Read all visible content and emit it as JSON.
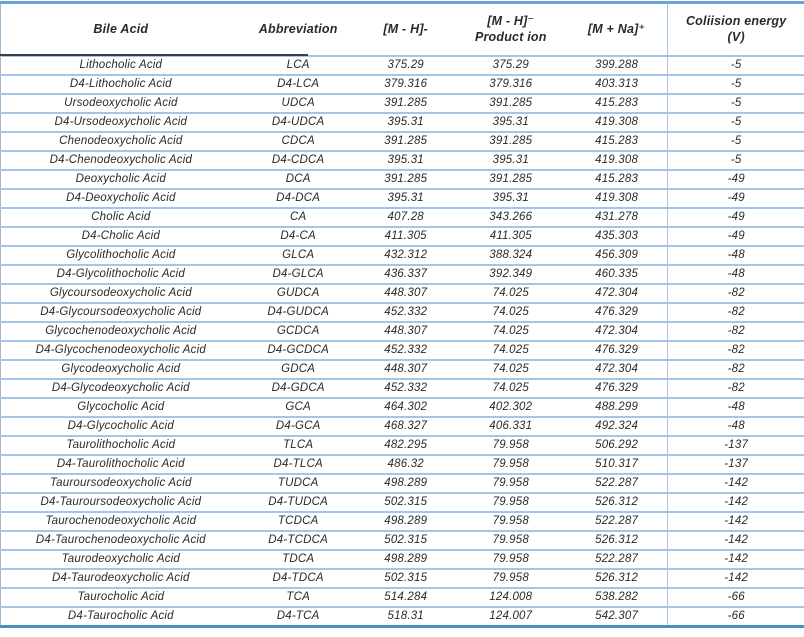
{
  "table": {
    "title": "Bile acid MS parameters table",
    "keys": [
      "bile_acid",
      "abbreviation",
      "m_minus_h",
      "product_ion",
      "m_plus_na",
      "collision_energy"
    ],
    "columns": [
      {
        "label": "Bile Acid",
        "sub": ""
      },
      {
        "label": "Abbreviation",
        "sub": ""
      },
      {
        "label": "[M - H]-",
        "sub": ""
      },
      {
        "label": "[M - H]⁻",
        "sub": "Product ion"
      },
      {
        "label": "[M + Na]⁺",
        "sub": ""
      },
      {
        "label": "Coliision energy",
        "sub": "(V)"
      }
    ],
    "rows": [
      [
        "Lithocholic Acid",
        "LCA",
        "375.29",
        "375.29",
        "399.288",
        "-5"
      ],
      [
        "D4-Lithocholic Acid",
        "D4-LCA",
        "379.316",
        "379.316",
        "403.313",
        "-5"
      ],
      [
        "Ursodeoxycholic Acid",
        "UDCA",
        "391.285",
        "391.285",
        "415.283",
        "-5"
      ],
      [
        "D4-Ursodeoxycholic Acid",
        "D4-UDCA",
        "395.31",
        "395.31",
        "419.308",
        "-5"
      ],
      [
        "Chenodeoxycholic Acid",
        "CDCA",
        "391.285",
        "391.285",
        "415.283",
        "-5"
      ],
      [
        "D4-Chenodeoxycholic Acid",
        "D4-CDCA",
        "395.31",
        "395.31",
        "419.308",
        "-5"
      ],
      [
        "Deoxycholic Acid",
        "DCA",
        "391.285",
        "391.285",
        "415.283",
        "-49"
      ],
      [
        "D4-Deoxycholic Acid",
        "D4-DCA",
        "395.31",
        "395.31",
        "419.308",
        "-49"
      ],
      [
        "Cholic Acid",
        "CA",
        "407.28",
        "343.266",
        "431.278",
        "-49"
      ],
      [
        "D4-Cholic Acid",
        "D4-CA",
        "411.305",
        "411.305",
        "435.303",
        "-49"
      ],
      [
        "Glycolithocholic Acid",
        "GLCA",
        "432.312",
        "388.324",
        "456.309",
        "-48"
      ],
      [
        "D4-Glycolithocholic Acid",
        "D4-GLCA",
        "436.337",
        "392.349",
        "460.335",
        "-48"
      ],
      [
        "Glycoursodeoxycholic Acid",
        "GUDCA",
        "448.307",
        "74.025",
        "472.304",
        "-82"
      ],
      [
        "D4-Glycoursodeoxycholic Acid",
        "D4-GUDCA",
        "452.332",
        "74.025",
        "476.329",
        "-82"
      ],
      [
        "Glycochenodeoxycholic Acid",
        "GCDCA",
        "448.307",
        "74.025",
        "472.304",
        "-82"
      ],
      [
        "D4-Glycochenodeoxycholic Acid",
        "D4-GCDCA",
        "452.332",
        "74.025",
        "476.329",
        "-82"
      ],
      [
        "Glycodeoxycholic Acid",
        "GDCA",
        "448.307",
        "74.025",
        "472.304",
        "-82"
      ],
      [
        "D4-Glycodeoxycholic Acid",
        "D4-GDCA",
        "452.332",
        "74.025",
        "476.329",
        "-82"
      ],
      [
        "Glycocholic Acid",
        "GCA",
        "464.302",
        "402.302",
        "488.299",
        "-48"
      ],
      [
        "D4-Glycocholic Acid",
        "D4-GCA",
        "468.327",
        "406.331",
        "492.324",
        "-48"
      ],
      [
        "Taurolithocholic Acid",
        "TLCA",
        "482.295",
        "79.958",
        "506.292",
        "-137"
      ],
      [
        "D4-Taurolithocholic Acid",
        "D4-TLCA",
        "486.32",
        "79.958",
        "510.317",
        "-137"
      ],
      [
        "Tauroursodeoxycholic Acid",
        "TUDCA",
        "498.289",
        "79.958",
        "522.287",
        "-142"
      ],
      [
        "D4-Tauroursodeoxycholic Acid",
        "D4-TUDCA",
        "502.315",
        "79.958",
        "526.312",
        "-142"
      ],
      [
        "Taurochenodeoxycholic Acid",
        "TCDCA",
        "498.289",
        "79.958",
        "522.287",
        "-142"
      ],
      [
        "D4-Taurochenodeoxycholic Acid",
        "D4-TCDCA",
        "502.315",
        "79.958",
        "526.312",
        "-142"
      ],
      [
        "Taurodeoxycholic Acid",
        "TDCA",
        "498.289",
        "79.958",
        "522.287",
        "-142"
      ],
      [
        "D4-Taurodeoxycholic Acid",
        "D4-TDCA",
        "502.315",
        "79.958",
        "526.312",
        "-142"
      ],
      [
        "Taurocholic Acid",
        "TCA",
        "514.284",
        "124.008",
        "538.282",
        "-66"
      ],
      [
        "D4-Taurocholic Acid",
        "D4-TCA",
        "518.31",
        "124.007",
        "542.307",
        "-66"
      ]
    ]
  },
  "colors": {
    "top_border": "#6aa3d8",
    "row_separator": "#a3c6e8",
    "bottom_border": "#4a8ec2",
    "header_dark_underline": "#3d3d3d",
    "text": "#2a2a2a",
    "left_border": "#9db8cf"
  }
}
